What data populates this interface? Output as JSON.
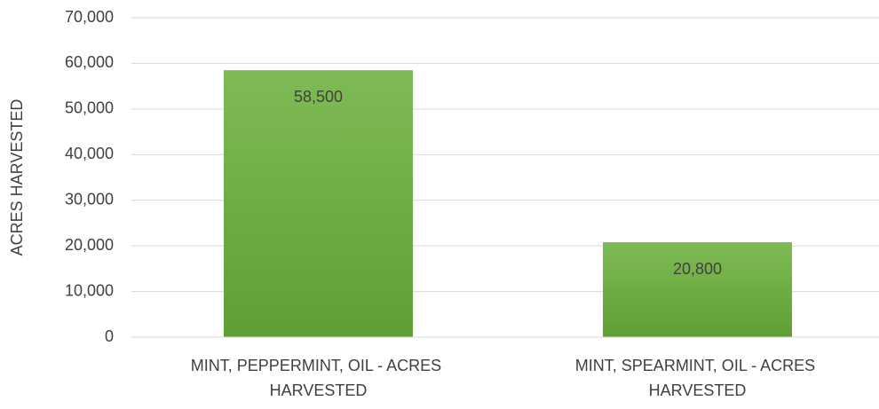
{
  "chart_data": {
    "type": "bar",
    "y_label": "ACRES HARVESTED",
    "categories": [
      "MINT, PEPPERMINT, OIL - ACRES HARVESTED",
      "MINT, SPEARMINT, OIL - ACRES HARVESTED"
    ],
    "values": [
      58500,
      20800
    ],
    "value_labels": [
      "58,500",
      "20,800"
    ],
    "color": "#70ad47",
    "ylim": [
      0,
      70000
    ],
    "yticks": [
      0,
      {
        "value": 10000,
        "label": "10,000"
      },
      {
        "value": 20000,
        "label": "20,000"
      },
      {
        "value": 30000,
        "label": "30,000"
      },
      {
        "value": 40000,
        "label": "40,000"
      },
      {
        "value": 50000,
        "label": "50,000"
      },
      {
        "value": 60000,
        "label": "60,000"
      },
      {
        "value": 70000,
        "label": "70,000"
      }
    ],
    "grid": true
  }
}
